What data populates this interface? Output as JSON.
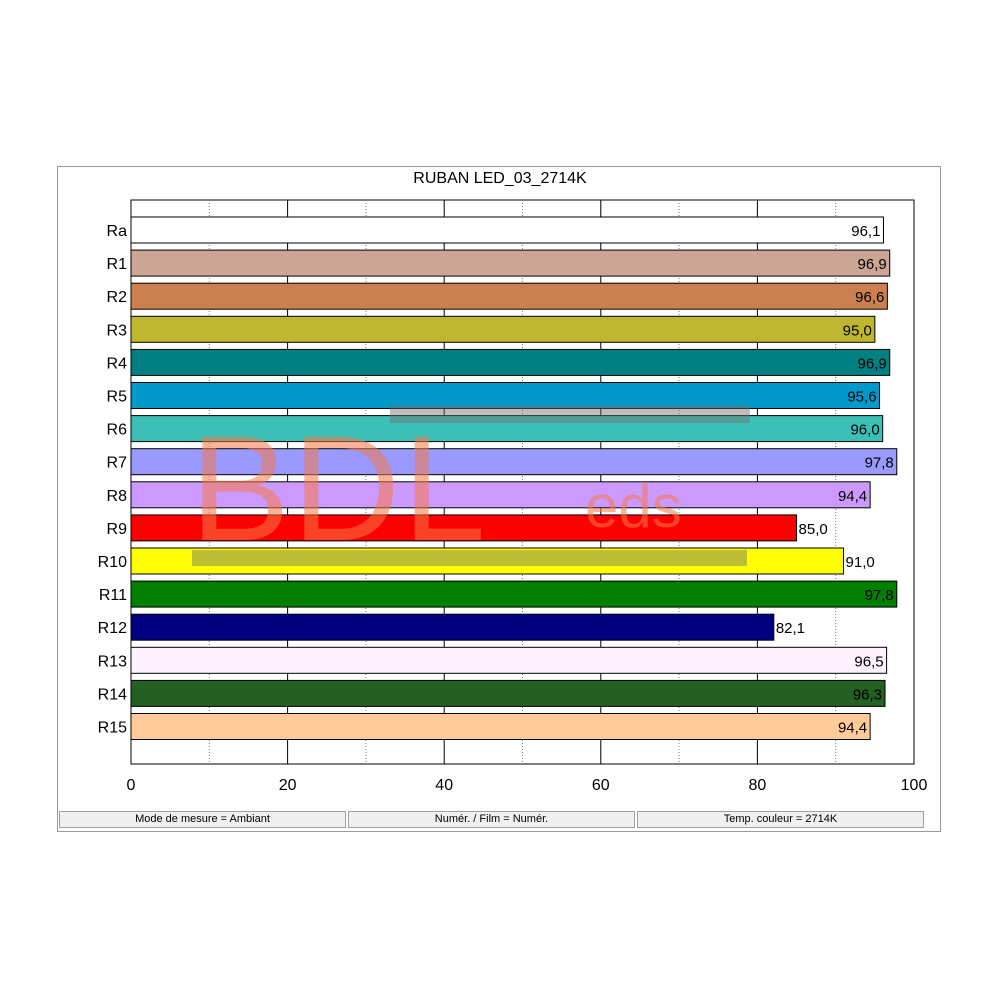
{
  "chart_data": {
    "type": "bar",
    "orientation": "horizontal",
    "title": "RUBAN LED_03_2714K",
    "categories": [
      "Ra",
      "R1",
      "R2",
      "R3",
      "R4",
      "R5",
      "R6",
      "R7",
      "R8",
      "R9",
      "R10",
      "R11",
      "R12",
      "R13",
      "R14",
      "R15"
    ],
    "values": [
      96.1,
      96.9,
      96.6,
      95.0,
      96.9,
      95.6,
      96.0,
      97.8,
      94.4,
      85.0,
      91.0,
      97.8,
      82.1,
      96.5,
      96.3,
      94.4
    ],
    "value_labels": [
      "96,1",
      "96,9",
      "96,6",
      "95,0",
      "96,9",
      "95,6",
      "96,0",
      "97,8",
      "94,4",
      "85,0",
      "91,0",
      "97,8",
      "82,1",
      "96,5",
      "96,3",
      "94,4"
    ],
    "colors": [
      "#ffffff",
      "#cca594",
      "#cc8050",
      "#bfb730",
      "#008080",
      "#0099cc",
      "#3cbfb7",
      "#9999ff",
      "#cc99ff",
      "#ff0000",
      "#ffff00",
      "#007f00",
      "#000080",
      "#fff2ff",
      "#246024",
      "#ffcc99"
    ],
    "xlim": [
      0,
      100
    ],
    "x_ticks": [
      0,
      20,
      40,
      60,
      80,
      100
    ],
    "grid": true,
    "legend": "none"
  },
  "status_bar": {
    "mode": "Mode de mesure = Ambiant",
    "num": "Numér. / Film = Numér.",
    "temp": "Temp. couleur = 2714K"
  },
  "watermark": {
    "main": "BDL",
    "sub": "eds"
  }
}
